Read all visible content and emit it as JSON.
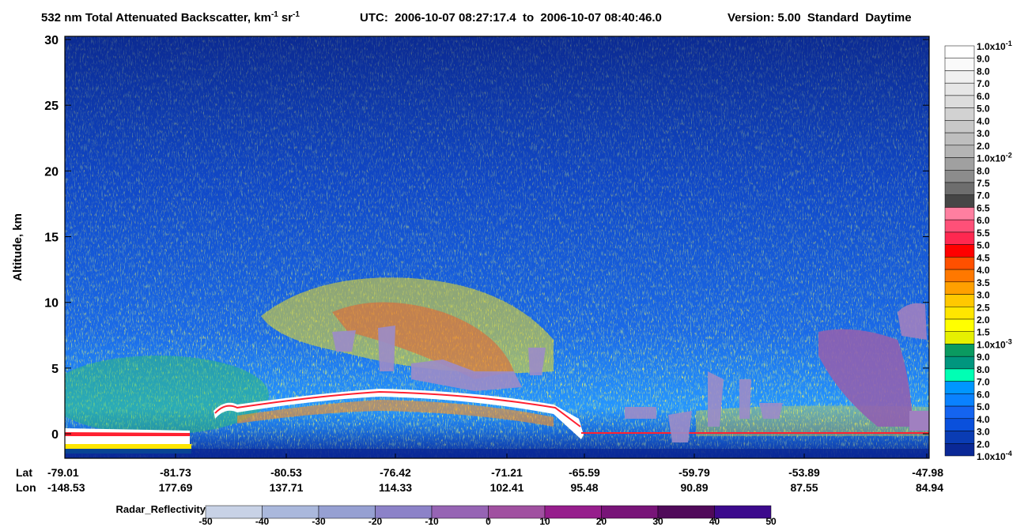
{
  "chart_data": {
    "type": "image",
    "title": {
      "main": "532 nm Total Attenuated Backscatter, km",
      "sup1": "-1",
      "unit2": "sr",
      "sup2": "-1",
      "utc": "UTC:  2006-10-07 08:27:17.4  to  2006-10-07 08:40:46.0",
      "version": "Version: 5.00  Standard  Daytime"
    },
    "ylabel": "Altitude, km",
    "ylim": [
      -1.86,
      30.24
    ],
    "yticks": [
      0,
      5,
      10,
      15,
      20,
      25,
      30
    ],
    "lat_label": "Lat",
    "lon_label": "Lon",
    "lat": [
      -79.01,
      -81.73,
      -80.53,
      -76.42,
      -71.21,
      -65.59,
      -59.79,
      -53.89,
      -47.98
    ],
    "lon": [
      -148.53,
      177.69,
      137.71,
      114.33,
      102.41,
      95.48,
      90.89,
      87.55,
      84.94
    ],
    "colorbar": {
      "labels": [
        {
          "mantissa": "1.0x10",
          "exponent": "-1"
        },
        "9.0",
        "8.0",
        "7.0",
        "6.0",
        "5.0",
        "4.0",
        "3.0",
        "2.0",
        {
          "mantissa": "1.0x10",
          "exponent": "-2"
        },
        "8.0",
        "7.5",
        "7.0",
        "6.5",
        "6.0",
        "5.5",
        "5.0",
        "4.5",
        "4.0",
        "3.5",
        "3.0",
        "2.5",
        "2.0",
        "1.5",
        {
          "mantissa": "1.0x10",
          "exponent": "-3"
        },
        "9.0",
        "8.0",
        "7.0",
        "6.0",
        "5.0",
        "4.0",
        "3.0",
        "2.0",
        {
          "mantissa": "1.0x10",
          "exponent": "-4"
        }
      ],
      "colors": [
        "#ffffff",
        "#fafafa",
        "#f0f0f0",
        "#e6e6e6",
        "#dcdcdc",
        "#d2d2d2",
        "#c8c8c8",
        "#bebebe",
        "#b4b4b4",
        "#a0a0a0",
        "#8c8c8c",
        "#6e6e6e",
        "#464646",
        "#ff7fa0",
        "#ff5078",
        "#ff2850",
        "#ff0000",
        "#ff5000",
        "#ff7800",
        "#ffa000",
        "#ffc800",
        "#ffe600",
        "#ffff00",
        "#e6f000",
        "#0a9a60",
        "#00967e",
        "#00ffb4",
        "#0096ff",
        "#0a82ff",
        "#1464f0",
        "#0a50dc",
        "#0a3cb4",
        "#0a2896"
      ]
    },
    "radar": {
      "label": "Radar_Reflectivity",
      "ticks": [
        -50,
        -40,
        -30,
        -20,
        -10,
        0,
        10,
        20,
        30,
        40,
        50
      ],
      "colors": [
        "#c8d2e6",
        "#aab8dc",
        "#96a0d2",
        "#8c82c8",
        "#9664b4",
        "#a050a0",
        "#961e8c",
        "#781478",
        "#500a5a",
        "#3c0a8c"
      ]
    }
  }
}
